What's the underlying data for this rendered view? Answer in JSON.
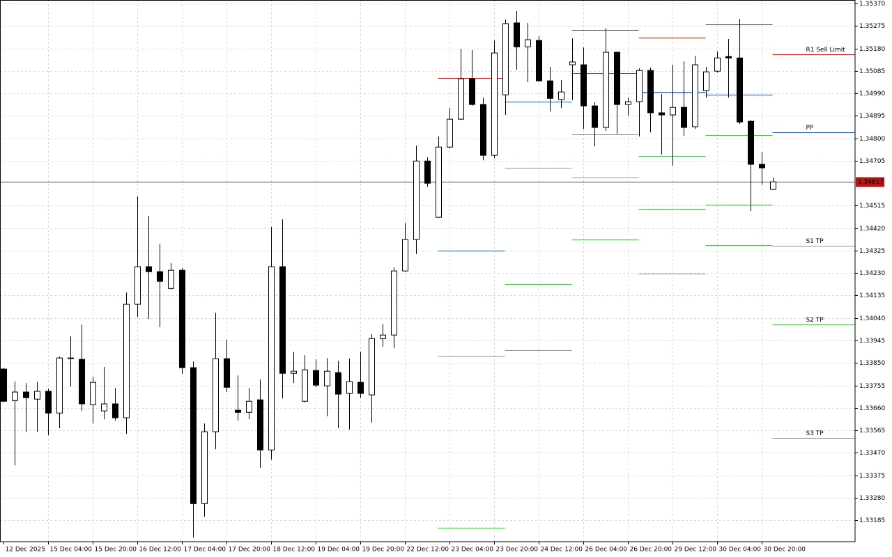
{
  "chart_data": {
    "type": "candlestick",
    "categories": [
      "12 Dec 2025",
      null,
      null,
      null,
      "15 Dec 04:00",
      null,
      null,
      null,
      "15 Dec 20:00",
      null,
      null,
      null,
      "16 Dec 12:00",
      null,
      null,
      null,
      "17 Dec 04:00",
      null,
      null,
      null,
      "17 Dec 20:00",
      null,
      null,
      null,
      "18 Dec 12:00",
      null,
      null,
      null,
      "19 Dec 04:00",
      null,
      null,
      null,
      "19 Dec 20:00",
      null,
      null,
      null,
      "22 Dec 12:00",
      null,
      null,
      null,
      "23 Dec 04:00",
      null,
      null,
      null,
      "23 Dec 20:00",
      null,
      null,
      null,
      "24 Dec 12:00",
      null,
      null,
      null,
      "26 Dec 04:00",
      null,
      null,
      null,
      "26 Dec 20:00",
      null,
      null,
      null,
      "29 Dec 12:00",
      null,
      null,
      null,
      "30 Dec 04:00",
      null,
      null,
      null,
      "30 Dec 20:00",
      null
    ],
    "open": [
      1.33824,
      1.33691,
      1.33727,
      1.33697,
      1.3373,
      1.33638,
      1.33871,
      1.33865,
      1.33674,
      1.33647,
      1.33677,
      1.33618,
      1.34098,
      1.34257,
      1.34236,
      1.34165,
      1.34242,
      1.3383,
      1.33255,
      1.33559,
      1.33868,
      1.3365,
      1.33641,
      1.33694,
      1.33482,
      1.34257,
      1.33806,
      1.33688,
      1.33818,
      1.33753,
      1.33809,
      1.33721,
      1.33768,
      1.33715,
      1.33953,
      1.33968,
      1.34239,
      1.34372,
      1.34704,
      1.34466,
      1.34763,
      1.34881,
      1.35052,
      1.34943,
      1.34728,
      1.34984,
      1.35288,
      1.35187,
      1.35214,
      1.35043,
      1.34964,
      1.35111,
      1.35111,
      1.34937,
      1.34846,
      1.35164,
      1.34943,
      1.34955,
      1.35087,
      1.34908,
      1.34899,
      1.34931,
      1.34849,
      1.35002,
      1.35084,
      1.35146,
      1.3514,
      1.34872,
      1.3469,
      1.34584
    ],
    "high": [
      1.3383,
      1.33771,
      1.33765,
      1.33771,
      1.33741,
      1.33877,
      1.33962,
      1.34012,
      1.33791,
      1.33833,
      1.33744,
      1.34148,
      1.34554,
      1.34472,
      1.34354,
      1.34272,
      1.34251,
      1.33856,
      1.33594,
      1.34062,
      1.33948,
      1.33797,
      1.33744,
      1.3378,
      1.34425,
      1.34457,
      1.33897,
      1.33883,
      1.33865,
      1.33871,
      1.33859,
      1.33868,
      1.33897,
      1.33971,
      1.34015,
      1.34254,
      1.34442,
      1.34769,
      1.34719,
      1.34808,
      1.34928,
      1.35179,
      1.35173,
      1.34972,
      1.35214,
      1.35302,
      1.35338,
      1.35288,
      1.35232,
      1.35102,
      1.35046,
      1.35223,
      1.35184,
      1.34952,
      1.35267,
      1.35167,
      1.34972,
      1.35096,
      1.35099,
      1.34987,
      1.35111,
      1.35126,
      1.35149,
      1.35102,
      1.35167,
      1.3522,
      1.35305,
      1.34878,
      1.34743,
      1.34634
    ],
    "low": [
      1.33683,
      1.33417,
      1.33559,
      1.33559,
      1.33544,
      1.33574,
      1.3375,
      1.33647,
      1.33594,
      1.33612,
      1.33606,
      1.3355,
      1.34045,
      1.34036,
      1.34001,
      1.3416,
      1.33803,
      1.33111,
      1.332,
      1.33485,
      1.33727,
      1.33606,
      1.33612,
      1.33406,
      1.33441,
      1.337,
      1.33765,
      1.33683,
      1.33747,
      1.33624,
      1.33574,
      1.33568,
      1.33703,
      1.33597,
      1.33918,
      1.33912,
      1.34236,
      1.3431,
      1.34595,
      1.34463,
      1.34757,
      1.34878,
      1.34937,
      1.34707,
      1.34716,
      1.34899,
      1.3509,
      1.35037,
      1.3504,
      1.34914,
      1.34928,
      1.34961,
      1.3484,
      1.34766,
      1.34831,
      1.34819,
      1.34896,
      1.34808,
      1.34825,
      1.34731,
      1.34684,
      1.3481,
      1.3484,
      1.34972,
      1.35078,
      1.34972,
      1.34861,
      1.34492,
      1.34604,
      1.34581
    ],
    "close": [
      1.33688,
      1.33727,
      1.33703,
      1.3373,
      1.33638,
      1.33871,
      1.33868,
      1.33677,
      1.33768,
      1.33677,
      1.33618,
      1.34098,
      1.34257,
      1.34236,
      1.34195,
      1.34242,
      1.3383,
      1.33255,
      1.33559,
      1.33868,
      1.33747,
      1.33641,
      1.33688,
      1.33482,
      1.34257,
      1.33806,
      1.33815,
      1.33821,
      1.33756,
      1.33815,
      1.33718,
      1.33771,
      1.33721,
      1.33953,
      1.33968,
      1.34239,
      1.34372,
      1.34704,
      1.3461,
      1.34763,
      1.34881,
      1.35052,
      1.34943,
      1.34728,
      1.35161,
      1.35285,
      1.35187,
      1.35217,
      1.35043,
      1.34969,
      1.34996,
      1.35123,
      1.34937,
      1.34846,
      1.35164,
      1.34943,
      1.34955,
      1.35087,
      1.34908,
      1.34899,
      1.34931,
      1.34846,
      1.35111,
      1.35081,
      1.3514,
      1.3514,
      1.34869,
      1.3469,
      1.34675,
      1.34616
    ],
    "up_color": "#ffffff",
    "down_color": "#000000",
    "outline_color": "#000000",
    "last_price": 1.34617,
    "last_price_color": "#b01818",
    "levels": [
      {
        "from": 39,
        "to": 45,
        "value": 1.35055,
        "color": "#c81e1e"
      },
      {
        "from": 39,
        "to": 45,
        "value": 1.34325,
        "color": "#2458b0"
      },
      {
        "from": 39,
        "to": 45,
        "value": 1.3388,
        "color": "#4cbf4c"
      },
      {
        "from": 39,
        "to": 45,
        "value": 1.33152,
        "color": "#4cbf4c"
      },
      {
        "from": 45,
        "to": 51,
        "value": 1.34955,
        "color": "#2458b0"
      },
      {
        "from": 45,
        "to": 51,
        "value": 1.34675,
        "color": "#4cbf4c"
      },
      {
        "from": 45,
        "to": 51,
        "value": 1.34183,
        "color": "#4cbf4c"
      },
      {
        "from": 45,
        "to": 51,
        "value": 1.33903,
        "color": "#4cbf4c"
      },
      {
        "from": 51,
        "to": 57,
        "value": 1.35258,
        "color": "#c81e1e"
      },
      {
        "from": 51,
        "to": 57,
        "value": 1.35075,
        "color": "#2458b0"
      },
      {
        "from": 51,
        "to": 57,
        "value": 1.34816,
        "color": "#4cbf4c"
      },
      {
        "from": 51,
        "to": 57,
        "value": 1.34634,
        "color": "#4cbf4c"
      },
      {
        "from": 51,
        "to": 57,
        "value": 1.34372,
        "color": "#4cbf4c"
      },
      {
        "from": 57,
        "to": 63,
        "value": 1.35226,
        "color": "#c81e1e"
      },
      {
        "from": 57,
        "to": 63,
        "value": 1.34996,
        "color": "#2458b0"
      },
      {
        "from": 57,
        "to": 63,
        "value": 1.34725,
        "color": "#4cbf4c"
      },
      {
        "from": 57,
        "to": 63,
        "value": 1.34501,
        "color": "#4cbf4c"
      },
      {
        "from": 57,
        "to": 63,
        "value": 1.34227,
        "color": "#4cbf4c"
      },
      {
        "from": 63,
        "to": 69,
        "value": 1.35282,
        "color": "#c81e1e"
      },
      {
        "from": 63,
        "to": 69,
        "value": 1.34984,
        "color": "#2458b0"
      },
      {
        "from": 63,
        "to": 69,
        "value": 1.34813,
        "color": "#4cbf4c"
      },
      {
        "from": 63,
        "to": 69,
        "value": 1.34519,
        "color": "#4cbf4c"
      },
      {
        "from": 63,
        "to": 69,
        "value": 1.34348,
        "color": "#4cbf4c"
      },
      {
        "from": 69,
        "value": 1.35155,
        "color": "#c81e1e",
        "label": "R1 Sell Limit"
      },
      {
        "from": 69,
        "value": 1.34825,
        "color": "#2458b0",
        "label": "PP"
      },
      {
        "from": 69,
        "value": 1.34345,
        "color": "#4cbf4c",
        "label": "S1 TP"
      },
      {
        "from": 69,
        "value": 1.34012,
        "color": "#4cbf4c",
        "label": "S2 TP"
      },
      {
        "from": 69,
        "value": 1.33532,
        "color": "#4cbf4c",
        "label": "S3 TP"
      }
    ],
    "ylim": [
      1.33094,
      1.35385
    ],
    "yticks": [
      {
        "value": 1.3537,
        "label": "1.35370"
      },
      {
        "value": 1.35275,
        "label": "1.35275"
      },
      {
        "value": 1.3518,
        "label": "1.35180"
      },
      {
        "value": 1.35085,
        "label": "1.35085"
      },
      {
        "value": 1.3499,
        "label": "1.34990"
      },
      {
        "value": 1.34895,
        "label": "1.34895"
      },
      {
        "value": 1.348,
        "label": "1.34800"
      },
      {
        "value": 1.34705,
        "label": "1.34705"
      },
      {
        "value": 1.34515,
        "label": "1.34515"
      },
      {
        "value": 1.3442,
        "label": "1.34420"
      },
      {
        "value": 1.34325,
        "label": "1.34325"
      },
      {
        "value": 1.3423,
        "label": "1.34230"
      },
      {
        "value": 1.34135,
        "label": "1.34135"
      },
      {
        "value": 1.3404,
        "label": "1.34040"
      },
      {
        "value": 1.33945,
        "label": "1.33945"
      },
      {
        "value": 1.3385,
        "label": "1.33850"
      },
      {
        "value": 1.33755,
        "label": "1.33755"
      },
      {
        "value": 1.3366,
        "label": "1.33660"
      },
      {
        "value": 1.33565,
        "label": "1.33565"
      },
      {
        "value": 1.3347,
        "label": "1.33470"
      },
      {
        "value": 1.33375,
        "label": "1.33375"
      },
      {
        "value": 1.3328,
        "label": "1.33280"
      },
      {
        "value": 1.33185,
        "label": "1.33185"
      }
    ],
    "grid": true
  }
}
